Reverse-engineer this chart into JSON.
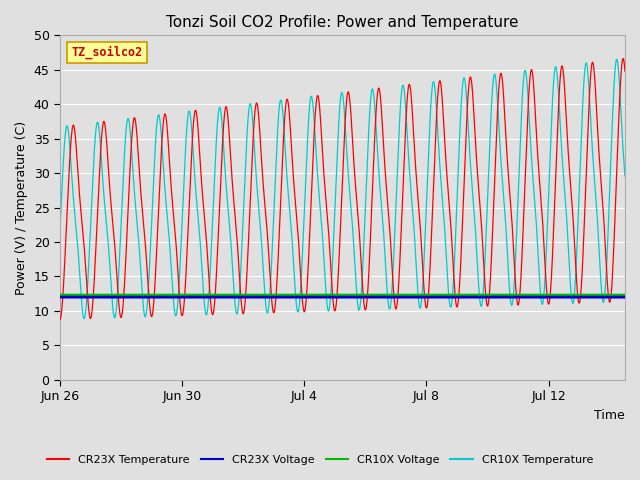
{
  "title": "Tonzi Soil CO2 Profile: Power and Temperature",
  "ylabel": "Power (V) / Temperature (C)",
  "xlabel": "Time",
  "ylim": [
    0,
    50
  ],
  "yticks": [
    0,
    5,
    10,
    15,
    20,
    25,
    30,
    35,
    40,
    45,
    50
  ],
  "bg_color": "#e0e0e0",
  "watermark_text": "TZ_soilco2",
  "watermark_color": "#cc0000",
  "watermark_bg": "#ffff99",
  "watermark_edge": "#cc9900",
  "cr23x_temp_color": "#ff0000",
  "cr23x_volt_color": "#0000cc",
  "cr10x_volt_color": "#00bb00",
  "cr10x_temp_color": "#00cccc",
  "cr23x_volt_value": 12.0,
  "cr10x_volt_value": 12.3,
  "grid_color": "#ffffff",
  "title_fontsize": 11,
  "axis_fontsize": 9,
  "tick_fontsize": 9,
  "xtick_positions": [
    0,
    4,
    8,
    12,
    16
  ],
  "xtick_labels": [
    "Jun 26",
    "Jun 30",
    "Jul 4",
    "Jul 8",
    "Jul 12"
  ],
  "xlim": [
    0,
    18.5
  ],
  "phase_shift_hours": 5.0,
  "period_hours": 24.0,
  "total_days": 18.5
}
